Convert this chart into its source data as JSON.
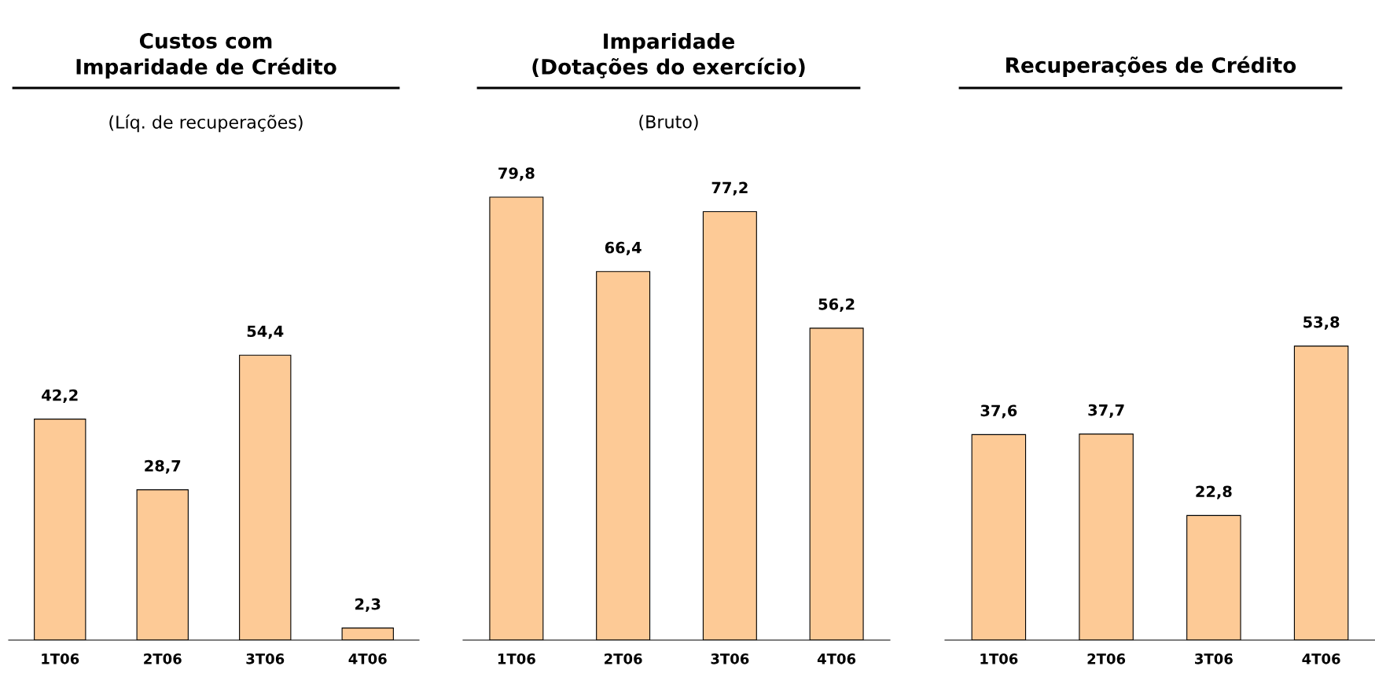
{
  "chart_data": [
    {
      "type": "bar",
      "title": "Custos com\nImparidade de Crédito",
      "subtitle": "(Líq. de recuperações)",
      "categories": [
        "1T06",
        "2T06",
        "3T06",
        "4T06"
      ],
      "values": [
        42.2,
        28.7,
        54.4,
        2.3
      ],
      "value_labels": [
        "42,2",
        "28,7",
        "54,4",
        "2,3"
      ],
      "color": "#fdca96",
      "grid": false,
      "legend": false
    },
    {
      "type": "bar",
      "title": "Imparidade\n(Dotações do exercício)",
      "subtitle": "(Bruto)",
      "categories": [
        "1T06",
        "2T06",
        "3T06",
        "4T06"
      ],
      "values": [
        79.8,
        66.4,
        77.2,
        56.2
      ],
      "value_labels": [
        "79,8",
        "66,4",
        "77,2",
        "56,2"
      ],
      "color": "#fdca96",
      "grid": false,
      "legend": false
    },
    {
      "type": "bar",
      "title": "Recuperações de Crédito",
      "categories": [
        "1T06",
        "2T06",
        "3T06",
        "4T06"
      ],
      "values": [
        37.6,
        37.7,
        22.8,
        53.8
      ],
      "value_labels": [
        "37,6",
        "37,7",
        "22,8",
        "53,8"
      ],
      "color": "#fdca96",
      "grid": false,
      "legend": false
    }
  ]
}
